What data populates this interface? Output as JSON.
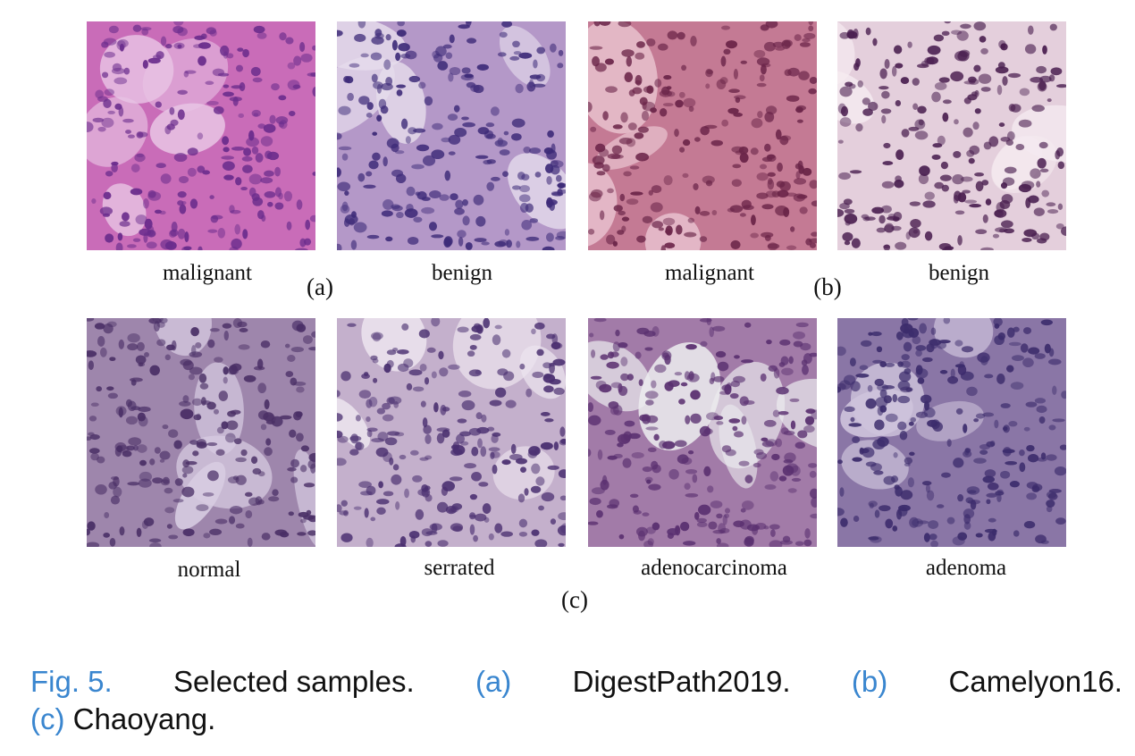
{
  "figure": {
    "panels": [
      {
        "id": "a",
        "group_label": "(a)",
        "tiles": [
          {
            "label": "malignant",
            "colors": {
              "bg": "#c96cb8",
              "cell": "#6a2c8c",
              "accent": "#e8c4e4"
            }
          },
          {
            "label": "benign",
            "colors": {
              "bg": "#b498c8",
              "cell": "#3d2a78",
              "accent": "#e6dcec"
            }
          }
        ]
      },
      {
        "id": "b",
        "group_label": "(b)",
        "tiles": [
          {
            "label": "malignant",
            "colors": {
              "bg": "#c47a94",
              "cell": "#6a2448",
              "accent": "#ecc8d4"
            }
          },
          {
            "label": "benign",
            "colors": {
              "bg": "#e4cfdc",
              "cell": "#4a1f50",
              "accent": "#f5eaf0"
            }
          }
        ]
      },
      {
        "id": "c",
        "group_label": "(c)",
        "tiles": [
          {
            "label": "normal",
            "colors": {
              "bg": "#9e86ac",
              "cell": "#4a2f66",
              "accent": "#d8cce2"
            }
          },
          {
            "label": "serrated",
            "colors": {
              "bg": "#c4b0cc",
              "cell": "#4a2f70",
              "accent": "#ece4ee"
            }
          },
          {
            "label": "adenocarcinoma",
            "colors": {
              "bg": "#a27ba8",
              "cell": "#5a3070",
              "accent": "#ecebee"
            }
          },
          {
            "label": "adenoma",
            "colors": {
              "bg": "#8a76a6",
              "cell": "#3c2c6c",
              "accent": "#cfc4dc"
            }
          }
        ]
      }
    ]
  },
  "caption": {
    "fig_label": "Fig. 5.",
    "text1": "Selected samples.",
    "ref_a": "(a)",
    "text_a": "DigestPath2019.",
    "ref_b": "(b)",
    "text_b": "Camelyon16.",
    "ref_c": "(c)",
    "text_c": "Chaoyang.",
    "colors": {
      "link": "#3a86cf",
      "text": "#111111"
    }
  }
}
